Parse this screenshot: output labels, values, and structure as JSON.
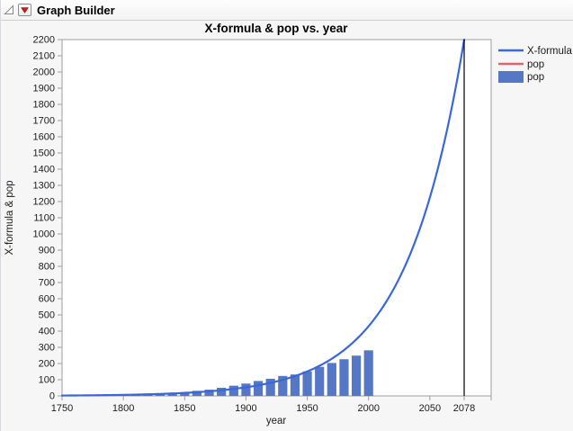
{
  "window": {
    "title": "Graph Builder"
  },
  "icons": {
    "disclosure": "disclosure-triangle",
    "red_triangle_menu": "red-triangle-menu"
  },
  "colors": {
    "page_bg": "#f6f6f7",
    "plot_bg": "#ffffff",
    "plot_border": "#9f9f9f",
    "line_blue": "#3a67da",
    "bar_blue": "#5577c6",
    "legend_red": "#e2636e",
    "reference_line": "#000000",
    "tick_text": "#1c1c1c",
    "red_triangle": "#c41f24",
    "disclosure_gray": "#8a8a8a"
  },
  "chart_data": {
    "type": "mixed",
    "title": "X-formula & pop vs. year",
    "xlabel": "year",
    "ylabel": "X-formula & pop",
    "grid": "off",
    "legend_position": "right",
    "x_axis": {
      "min": 1750,
      "max": 2100,
      "labeled_ticks": [
        1750,
        1800,
        1850,
        1900,
        1950,
        2000,
        2050,
        2078
      ],
      "unlabeled_ticks": [
        2100
      ]
    },
    "y_axis": {
      "min": 0,
      "max": 2200,
      "tick_step": 100
    },
    "reference_line_x": 2078,
    "series": [
      {
        "name": "X-formula",
        "type": "line",
        "color": "#3a67da",
        "formula": {
          "value_at_ref": 2200,
          "ref_x": 2078,
          "growth_rate": 0.02093,
          "x_start": 1750,
          "x_end": 2078
        },
        "sample_points": [
          [
            1750,
            2.3
          ],
          [
            1800,
            6.5
          ],
          [
            1850,
            18.6
          ],
          [
            1900,
            53
          ],
          [
            1950,
            151
          ],
          [
            2000,
            430
          ],
          [
            2050,
            1225
          ],
          [
            2078,
            2200
          ]
        ]
      },
      {
        "name": "pop",
        "type": "line",
        "color": "#e2636e",
        "visible": false,
        "points": []
      },
      {
        "name": "pop",
        "type": "bar",
        "color": "#5577c6",
        "points": [
          [
            1790,
            3.9
          ],
          [
            1800,
            5.3
          ],
          [
            1810,
            7.2
          ],
          [
            1820,
            9.6
          ],
          [
            1830,
            12.9
          ],
          [
            1840,
            17.1
          ],
          [
            1850,
            23.2
          ],
          [
            1860,
            31.4
          ],
          [
            1870,
            38.6
          ],
          [
            1880,
            50.2
          ],
          [
            1890,
            63.0
          ],
          [
            1900,
            76.2
          ],
          [
            1910,
            92.2
          ],
          [
            1920,
            106.0
          ],
          [
            1930,
            123.2
          ],
          [
            1940,
            132.2
          ],
          [
            1950,
            151.3
          ],
          [
            1960,
            179.3
          ],
          [
            1970,
            203.3
          ],
          [
            1980,
            226.5
          ],
          [
            1990,
            248.7
          ],
          [
            2000,
            281.4
          ]
        ]
      }
    ],
    "legend": [
      {
        "label": "X-formula",
        "swatch": "line",
        "color": "#3a67da"
      },
      {
        "label": "pop",
        "swatch": "line",
        "color": "#e2636e"
      },
      {
        "label": "pop",
        "swatch": "rect",
        "color": "#5577c6"
      }
    ]
  }
}
